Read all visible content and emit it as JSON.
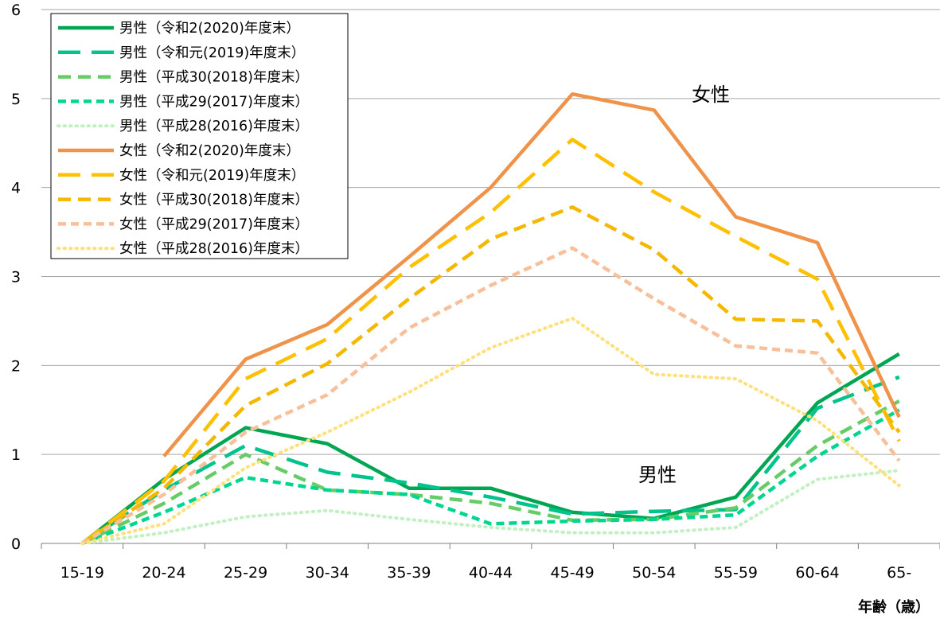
{
  "chart_data": {
    "type": "line",
    "xlabel": "年齢（歳）",
    "ylabel": "",
    "ylim": [
      0,
      6
    ],
    "yticks": [
      "0",
      "1",
      "2",
      "3",
      "4",
      "5",
      "6"
    ],
    "categories": [
      "15-19",
      "20-24",
      "25-29",
      "30-34",
      "35-39",
      "40-44",
      "45-49",
      "50-54",
      "55-59",
      "60-64",
      "65-"
    ],
    "grid": "horizontal",
    "legend_position": "top-left",
    "annotations": [
      {
        "text": "女性",
        "near": "female peak"
      },
      {
        "text": "男性",
        "near": "male curves"
      }
    ],
    "series": [
      {
        "name": "男性（令和2(2020)年度末）",
        "color": "#00a651",
        "style": "solid",
        "values": [
          0.0,
          0.72,
          1.3,
          1.12,
          0.62,
          0.62,
          0.35,
          0.28,
          0.52,
          1.58,
          2.13
        ]
      },
      {
        "name": "男性（令和元(2019)年度末）",
        "color": "#00c48c",
        "style": "longdash",
        "values": [
          0.0,
          0.6,
          1.1,
          0.8,
          0.68,
          0.52,
          0.33,
          0.36,
          0.38,
          1.52,
          1.87
        ]
      },
      {
        "name": "男性（平成30(2018)年度末）",
        "color": "#66cc66",
        "style": "dash",
        "values": [
          0.0,
          0.45,
          1.0,
          0.6,
          0.55,
          0.45,
          0.26,
          0.27,
          0.4,
          1.1,
          1.6
        ]
      },
      {
        "name": "男性（平成29(2017)年度末）",
        "color": "#00d68f",
        "style": "shortdash",
        "values": [
          0.0,
          0.35,
          0.74,
          0.6,
          0.55,
          0.22,
          0.25,
          0.27,
          0.32,
          0.98,
          1.5
        ]
      },
      {
        "name": "男性（平成28(2016)年度末）",
        "color": "#c2f0c2",
        "style": "dot",
        "values": [
          0.0,
          0.12,
          0.3,
          0.37,
          0.27,
          0.18,
          0.12,
          0.12,
          0.18,
          0.72,
          0.82
        ]
      },
      {
        "name": "女性（令和2(2020)年度末）",
        "color": "#f0934a",
        "style": "solid",
        "values": [
          null,
          0.98,
          2.07,
          2.46,
          3.22,
          4.0,
          5.05,
          4.87,
          3.67,
          3.38,
          1.42
        ]
      },
      {
        "name": "女性（令和元(2019)年度末）",
        "color": "#ffc000",
        "style": "longdash",
        "values": [
          0.0,
          0.7,
          1.85,
          2.3,
          3.1,
          3.72,
          4.54,
          3.95,
          3.45,
          2.97,
          1.15
        ]
      },
      {
        "name": "女性（平成30(2018)年度末）",
        "color": "#f5b800",
        "style": "dash",
        "values": [
          0.0,
          0.62,
          1.55,
          2.02,
          2.75,
          3.42,
          3.78,
          3.3,
          2.52,
          2.5,
          1.25
        ]
      },
      {
        "name": "女性（平成29(2017)年度末）",
        "color": "#f8c09a",
        "style": "shortdash",
        "values": [
          0.0,
          0.55,
          1.25,
          1.67,
          2.42,
          2.9,
          3.32,
          2.75,
          2.22,
          2.14,
          0.93
        ]
      },
      {
        "name": "女性（平成28(2016)年度末）",
        "color": "#ffe07a",
        "style": "dot",
        "values": [
          0.0,
          0.22,
          0.85,
          1.25,
          1.7,
          2.2,
          2.53,
          1.9,
          1.85,
          1.38,
          0.65
        ]
      }
    ]
  }
}
